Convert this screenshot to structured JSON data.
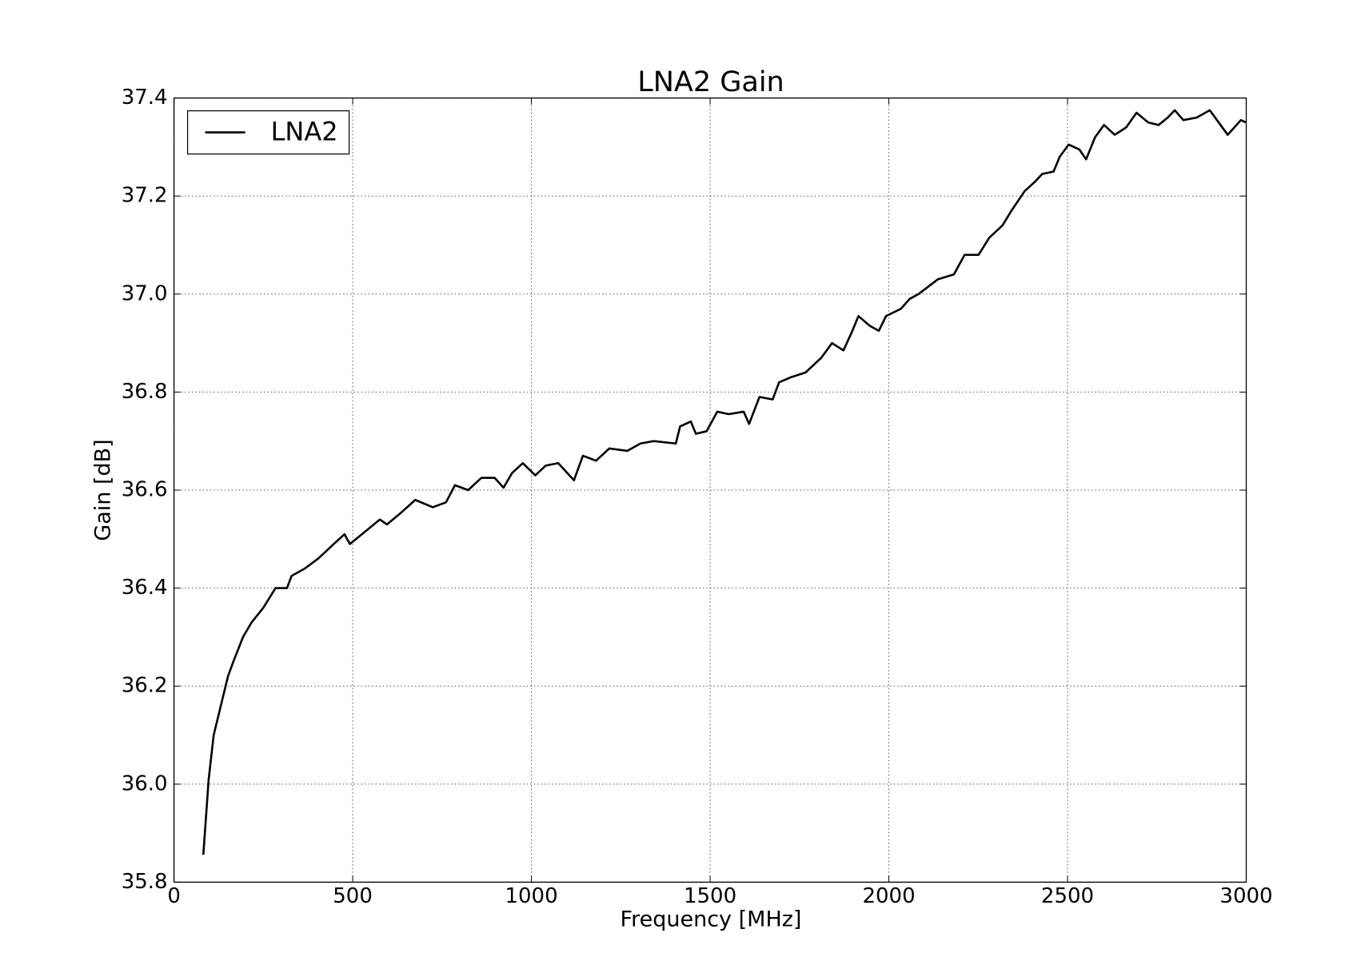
{
  "chart_data": {
    "type": "line",
    "title": "LNA2 Gain",
    "x_label": "Frequency [MHz]",
    "y_label": "Gain [dB]",
    "x": [
      82,
      97,
      111,
      131,
      151,
      166,
      193,
      217,
      250,
      284,
      316,
      329,
      366,
      403,
      447,
      477,
      492,
      526,
      576,
      596,
      637,
      675,
      724,
      761,
      786,
      823,
      860,
      897,
      922,
      946,
      976,
      1011,
      1040,
      1075,
      1119,
      1144,
      1181,
      1218,
      1268,
      1305,
      1342,
      1404,
      1416,
      1446,
      1460,
      1490,
      1520,
      1552,
      1594,
      1609,
      1638,
      1675,
      1693,
      1725,
      1767,
      1811,
      1841,
      1873,
      1898,
      1915,
      1947,
      1972,
      1992,
      2034,
      2058,
      2083,
      2137,
      2182,
      2212,
      2251,
      2281,
      2318,
      2343,
      2380,
      2410,
      2429,
      2461,
      2478,
      2503,
      2533,
      2552,
      2577,
      2602,
      2632,
      2664,
      2693,
      2726,
      2755,
      2780,
      2800,
      2824,
      2861,
      2898,
      2918,
      2948,
      2985,
      3000
    ],
    "series": [
      {
        "name": "LNA2",
        "color": "#000000",
        "values": [
          35.856,
          36.01,
          36.1,
          36.16,
          36.22,
          36.25,
          36.3,
          36.33,
          36.36,
          36.4,
          36.4,
          36.425,
          36.44,
          36.46,
          36.49,
          36.51,
          36.49,
          36.51,
          36.54,
          36.53,
          36.555,
          36.58,
          36.565,
          36.575,
          36.61,
          36.6,
          36.625,
          36.625,
          36.605,
          36.635,
          36.655,
          36.63,
          36.65,
          36.655,
          36.62,
          36.67,
          36.66,
          36.685,
          36.68,
          36.695,
          36.7,
          36.695,
          36.73,
          36.74,
          36.715,
          36.72,
          36.76,
          36.755,
          36.76,
          36.735,
          36.79,
          36.785,
          36.82,
          36.83,
          36.84,
          36.87,
          36.9,
          36.885,
          36.925,
          36.955,
          36.935,
          36.925,
          36.955,
          36.97,
          36.99,
          37.0,
          37.03,
          37.04,
          37.08,
          37.08,
          37.115,
          37.14,
          37.17,
          37.21,
          37.23,
          37.245,
          37.25,
          37.28,
          37.305,
          37.295,
          37.275,
          37.32,
          37.345,
          37.325,
          37.34,
          37.37,
          37.35,
          37.345,
          37.36,
          37.375,
          37.355,
          37.36,
          37.375,
          37.355,
          37.325,
          37.355,
          37.35
        ]
      }
    ],
    "xlim": [
      0,
      3000
    ],
    "xticks": [
      0,
      500,
      1000,
      1500,
      2000,
      2500,
      3000
    ],
    "ylim": [
      35.8,
      37.4
    ],
    "yticks": [
      35.8,
      {
        "value": 36,
        "label": "36.0"
      },
      36.2,
      36.4,
      36.6,
      36.8,
      {
        "value": 37,
        "label": "37.0"
      },
      37.2,
      37.4
    ],
    "grid": true,
    "legend": "upper left"
  }
}
